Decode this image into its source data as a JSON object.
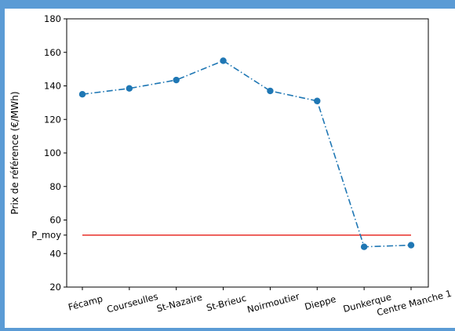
{
  "chart_data": {
    "type": "line",
    "title": "",
    "xlabel": "",
    "ylabel": "Prix de référence (€/MWh)",
    "ylim": [
      20,
      180
    ],
    "yticks": [
      20,
      40,
      60,
      80,
      100,
      120,
      140,
      160,
      180
    ],
    "grid": false,
    "categories": [
      "Fécamp",
      "Courseulles",
      "St-Nazaire",
      "St-Brieuc",
      "Noirmoutier",
      "Dieppe",
      "Dunkerque",
      "Centre Manche 1"
    ],
    "series": [
      {
        "values": [
          135,
          138.5,
          143.5,
          155,
          137,
          131,
          44,
          45
        ],
        "color": "#1f77b4",
        "linestyle": "dashdot",
        "marker": "circle"
      }
    ],
    "reference_line": {
      "label": "P_moy",
      "value": 51,
      "color": "#e8302a"
    }
  }
}
